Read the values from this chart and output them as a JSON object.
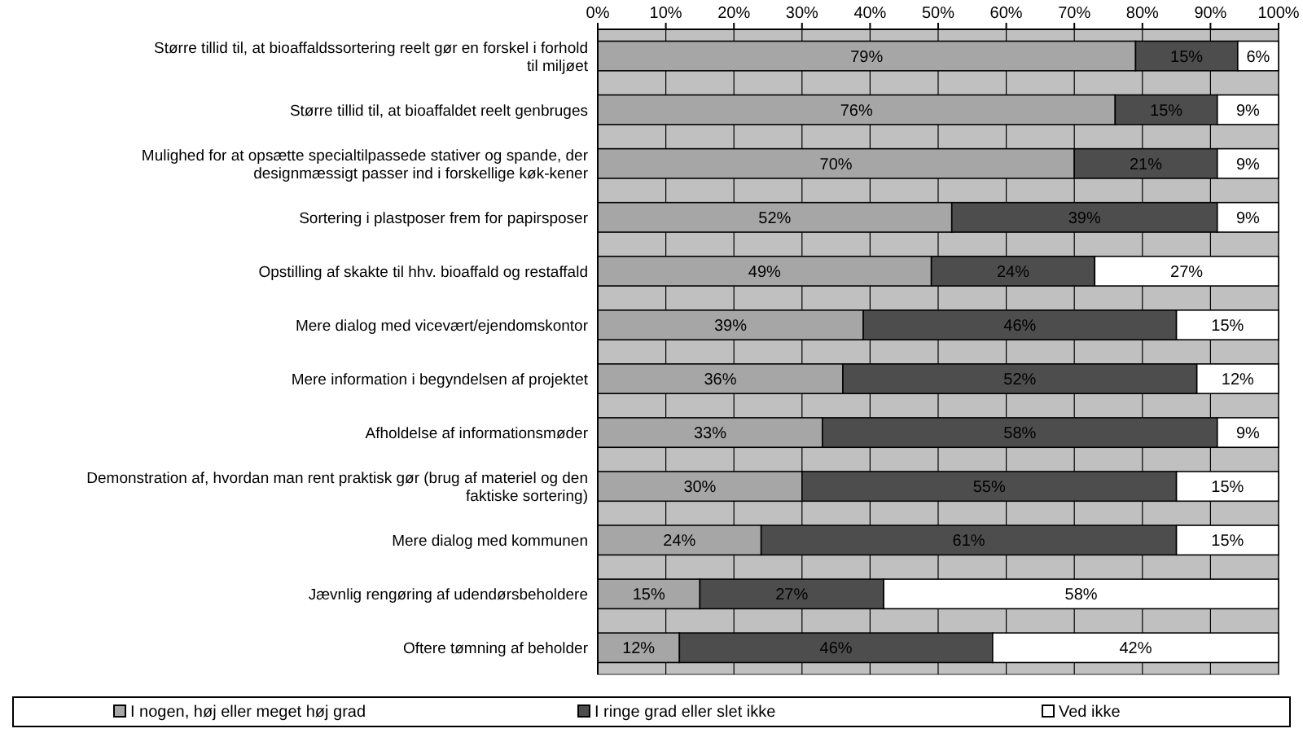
{
  "chart_data": {
    "type": "bar",
    "orientation": "horizontal",
    "stacked": true,
    "categories": [
      "Større tillid til, at bioaffaldssortering reelt gør en forskel i forhold til miljøet",
      "Større tillid til, at bioaffaldet reelt genbruges",
      "Mulighed for at opsætte specialtilpassede stativer og spande, der designmæssigt passer ind i forskellige køk-kener",
      "Sortering i plastposer frem for papirsposer",
      "Opstilling af skakte til hhv. bioaffald og restaffald",
      "Mere dialog med vicevært/ejendomskontor",
      "Mere information i begyndelsen af projektet",
      "Afholdelse af informationsmøder",
      "Demonstration af, hvordan man rent praktisk gør (brug af materiel og den faktiske sortering)",
      "Mere dialog med kommunen",
      "Jævnlig rengøring af udendørsbeholdere",
      "Oftere tømning af beholder"
    ],
    "series": [
      {
        "name": "I nogen, høj eller meget høj grad",
        "color": "#a6a6a6",
        "values": [
          79,
          76,
          70,
          52,
          49,
          39,
          36,
          33,
          30,
          24,
          15,
          12
        ],
        "value_labels": [
          "79%",
          "76%",
          "70%",
          "52%",
          "49%",
          "39%",
          "36%",
          "33%",
          "30%",
          "24%",
          "15%",
          "12%"
        ]
      },
      {
        "name": "I ringe grad eller slet ikke",
        "color": "#4d4d4d",
        "values": [
          15,
          15,
          21,
          39,
          24,
          46,
          52,
          58,
          55,
          61,
          27,
          46
        ],
        "value_labels": [
          "15%",
          "15%",
          "21%",
          "39%",
          "24%",
          "46%",
          "52%",
          "58%",
          "55%",
          "61%",
          "27%",
          "46%"
        ]
      },
      {
        "name": "Ved ikke",
        "color": "#ffffff",
        "values": [
          6,
          9,
          9,
          9,
          27,
          15,
          12,
          9,
          15,
          15,
          58,
          42
        ],
        "value_labels": [
          "6%",
          "9%",
          "9%",
          "9%",
          "27%",
          "15%",
          "12%",
          "9%",
          "15%",
          "15%",
          "58%",
          "42%"
        ]
      }
    ],
    "xlim": [
      0,
      100
    ],
    "xticks": [
      {
        "value": 0,
        "label": "0%"
      },
      {
        "value": 10,
        "label": "10%"
      },
      {
        "value": 20,
        "label": "20%"
      },
      {
        "value": 30,
        "label": "30%"
      },
      {
        "value": 40,
        "label": "40%"
      },
      {
        "value": 50,
        "label": "50%"
      },
      {
        "value": 60,
        "label": "60%"
      },
      {
        "value": 70,
        "label": "70%"
      },
      {
        "value": 80,
        "label": "80%"
      },
      {
        "value": 90,
        "label": "90%"
      },
      {
        "value": 100,
        "label": "100%"
      }
    ],
    "grid": "x",
    "legend": "bottom"
  }
}
